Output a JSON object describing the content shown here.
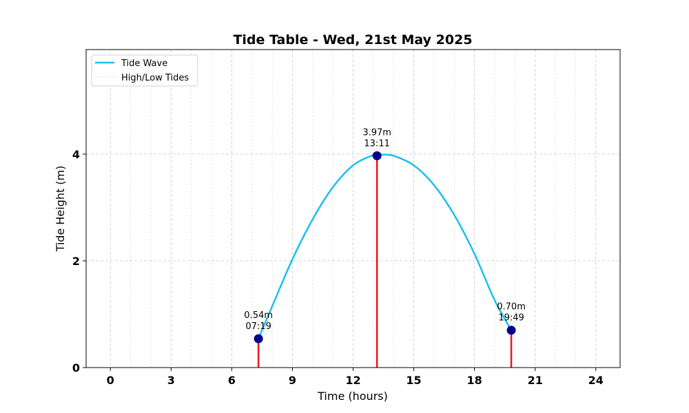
{
  "chart_data": {
    "type": "line",
    "title": "Tide Table - Wed, 21st May 2025",
    "xlabel": "Time (hours)",
    "ylabel": "Tide Height (m)",
    "xlim": [
      -1.2,
      25.2
    ],
    "ylim": [
      0,
      5.96
    ],
    "xticks": [
      0,
      3,
      6,
      9,
      12,
      15,
      18,
      21,
      24
    ],
    "xtick_labels": [
      "0",
      "3",
      "6",
      "9",
      "12",
      "15",
      "18",
      "21",
      "24"
    ],
    "yticks": [
      0,
      2,
      4
    ],
    "ytick_labels": [
      "0",
      "2",
      "4"
    ],
    "grid": true,
    "legend_position": "top-left",
    "legend": [
      {
        "label": "Tide Wave",
        "style": "solid",
        "color": "#1ABFF0"
      },
      {
        "label": "High/Low Tides",
        "style": "dotted",
        "color": "#cccccc"
      }
    ],
    "series": [
      {
        "name": "Tide Wave",
        "color": "#1ABFF0",
        "x": [
          7.32,
          8,
          9,
          10,
          11,
          12,
          13,
          13.5,
          14,
          15,
          16,
          17,
          18,
          19,
          19.82
        ],
        "y": [
          0.54,
          1.15,
          2.03,
          2.78,
          3.38,
          3.79,
          3.98,
          3.99,
          3.97,
          3.79,
          3.42,
          2.86,
          2.13,
          1.26,
          0.7
        ]
      }
    ],
    "tide_points": [
      {
        "x": 7.32,
        "y": 0.54,
        "label_height": "0.54m",
        "label_time": "07:19"
      },
      {
        "x": 13.18,
        "y": 3.97,
        "label_height": "3.97m",
        "label_time": "13:11"
      },
      {
        "x": 19.82,
        "y": 0.7,
        "label_height": "0.70m",
        "label_time": "19:49"
      }
    ],
    "colors": {
      "wave": "#1ABFF0",
      "stem": "#e8141a",
      "marker": "#00008b",
      "grid": "#cccccc"
    }
  }
}
